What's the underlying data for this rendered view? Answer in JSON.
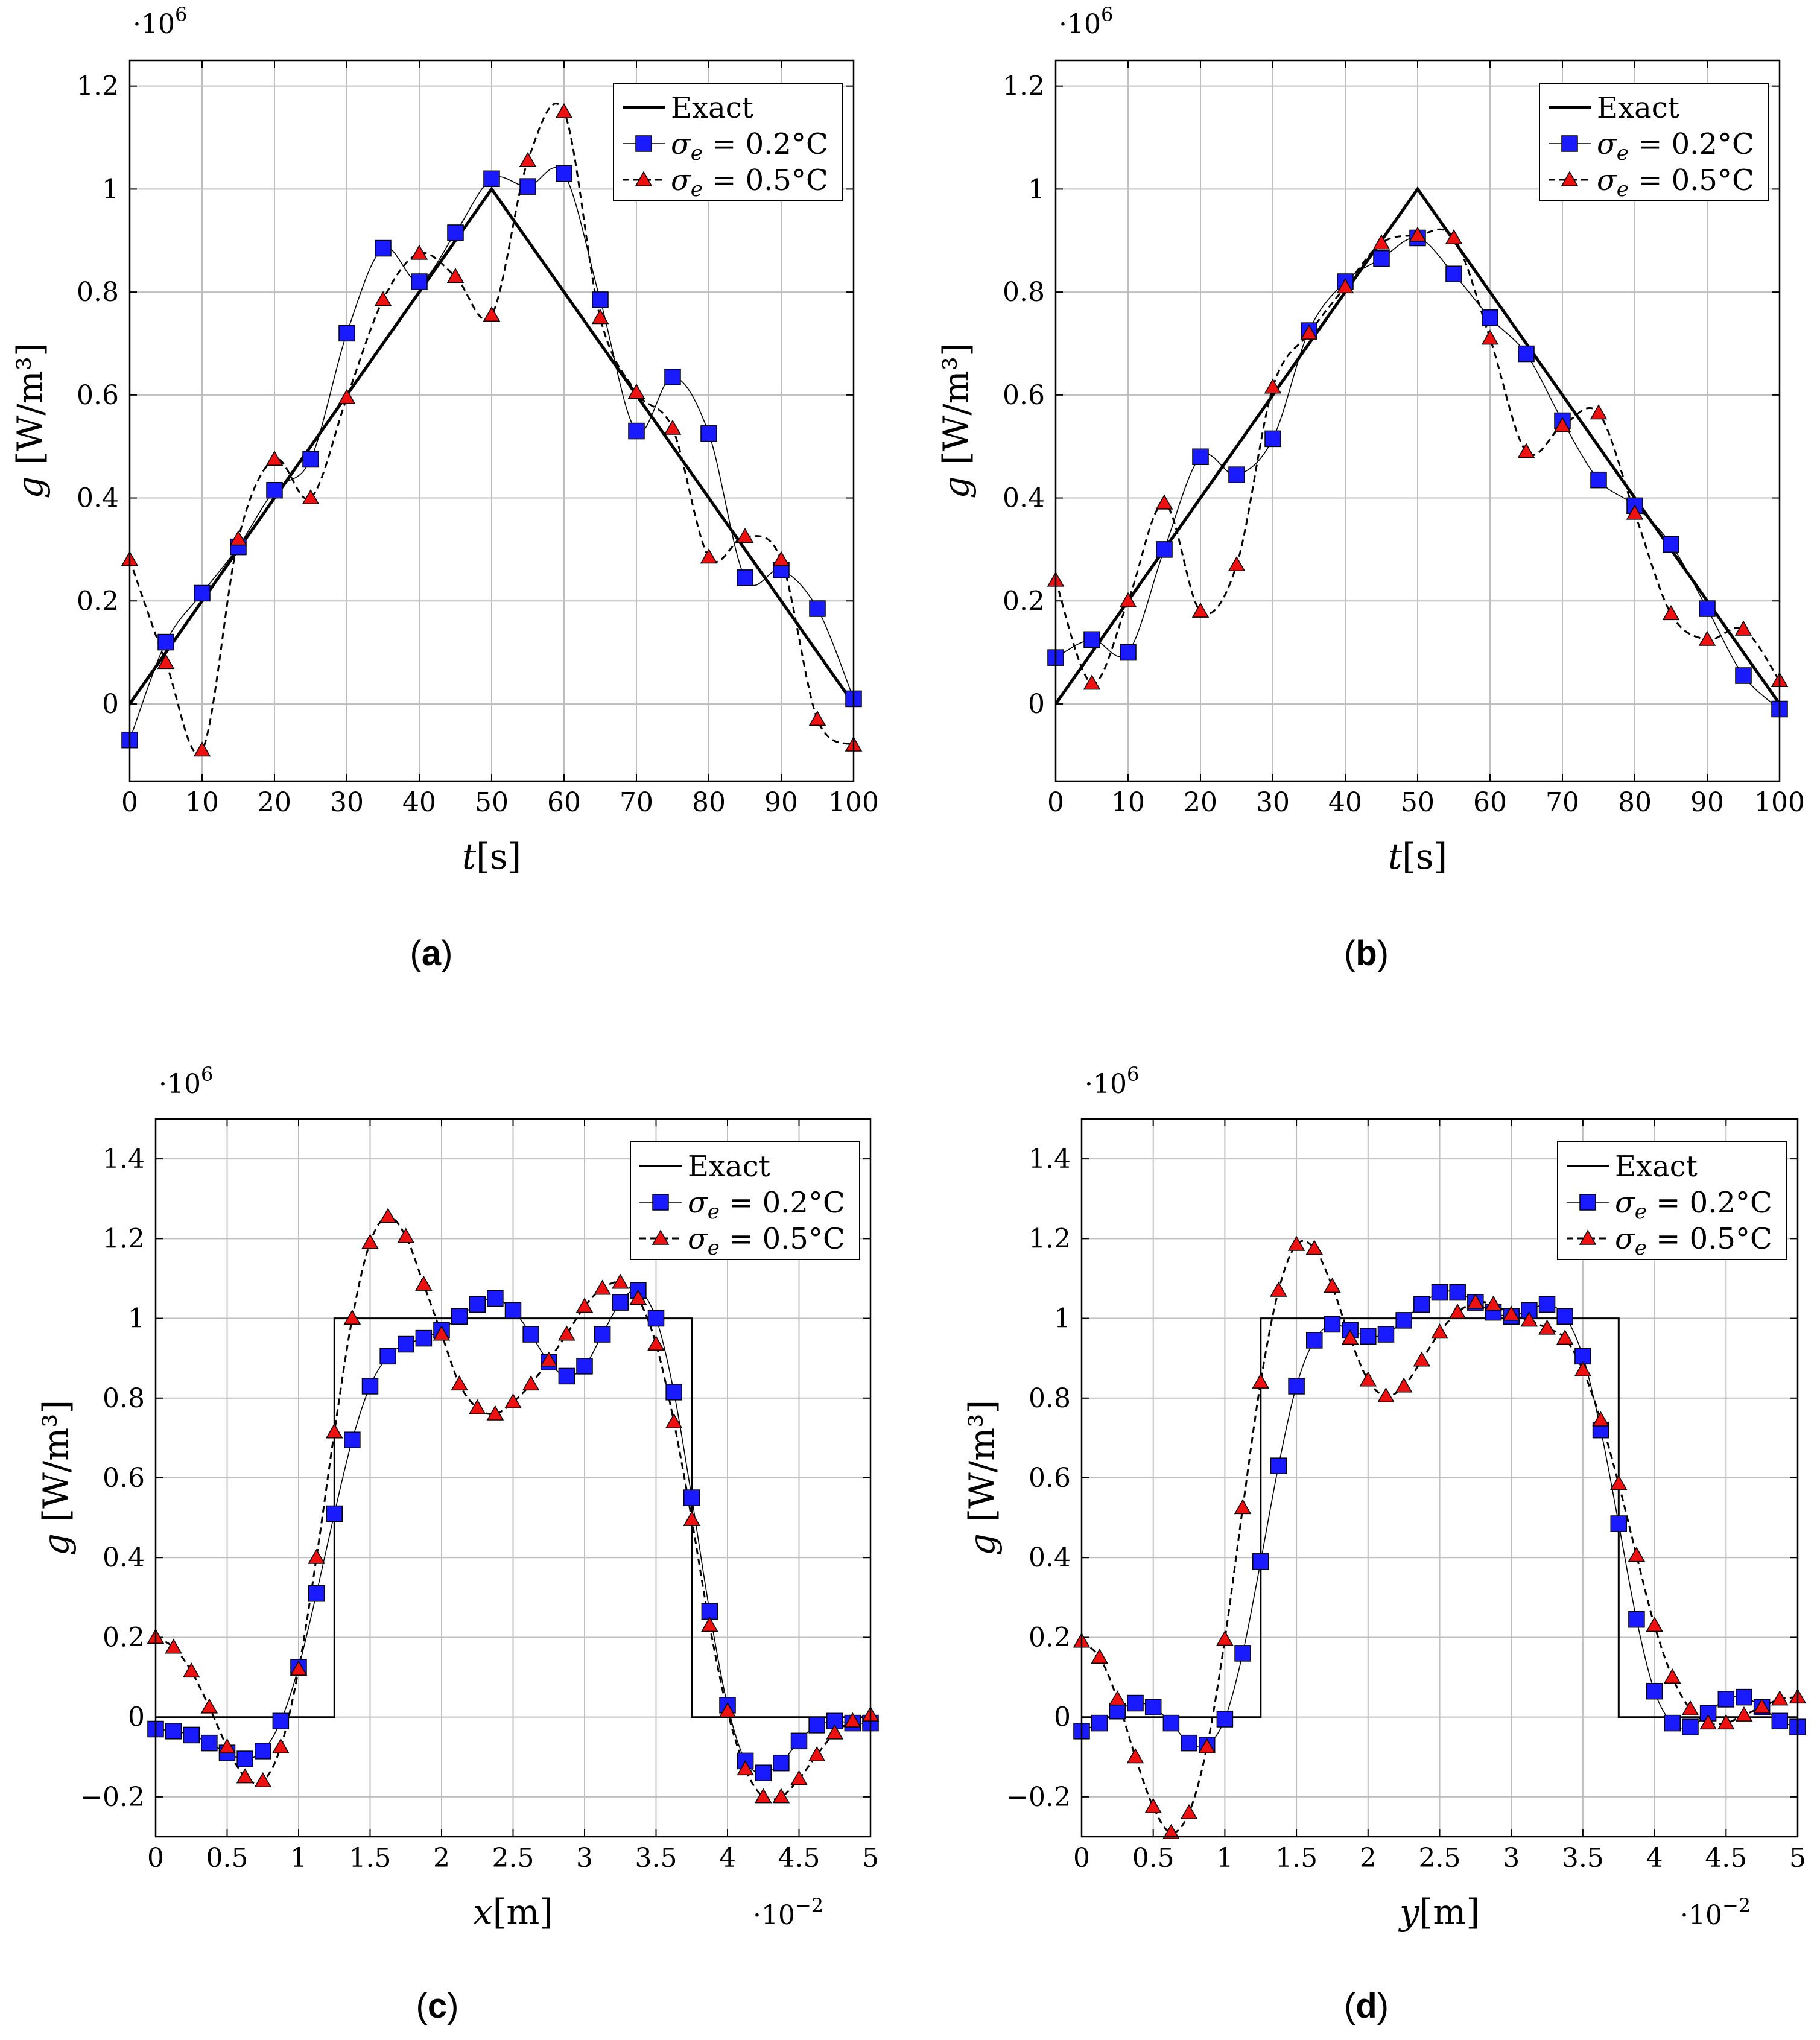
{
  "colors": {
    "exact": "#000000",
    "sigma02_fill": "#1a1aff",
    "sigma05_fill": "#ee1111",
    "grid": "#bfbfbf"
  },
  "chart_data": [
    {
      "id": "a",
      "type": "line",
      "caption_letter": "a",
      "xlabel_var": "t",
      "xlabel_unit": "[s]",
      "ylabel_var": "g",
      "ylabel_unit": "[W/m³]",
      "y_multiplier_base": "·10",
      "y_multiplier_exp": "6",
      "x_multiplier_base": "",
      "x_multiplier_exp": "",
      "xlim": [
        0,
        100
      ],
      "ylim": [
        -0.15,
        1.25
      ],
      "xticks": [
        0,
        10,
        20,
        30,
        40,
        50,
        60,
        70,
        80,
        90,
        100
      ],
      "xtick_labels": [
        "0",
        "10",
        "20",
        "30",
        "40",
        "50",
        "60",
        "70",
        "80",
        "90",
        "100"
      ],
      "yticks": [
        0,
        0.2,
        0.4,
        0.6,
        0.8,
        1,
        1.2
      ],
      "ytick_labels": [
        "0",
        "0.2",
        "0.4",
        "0.6",
        "0.8",
        "1",
        "1.2"
      ],
      "legend": {
        "exact": "Exact",
        "s1_prefix": "σ",
        "s1_sub": "e",
        "s1_value": " = 0.2°C",
        "s2_prefix": "σ",
        "s2_sub": "e",
        "s2_value": " = 0.5°C"
      },
      "series": [
        {
          "name": "Exact",
          "x": [
            0,
            50,
            100
          ],
          "values": [
            0,
            1,
            0
          ],
          "step": false
        },
        {
          "name": "σe = 0.2°C",
          "x": [
            0,
            5,
            10,
            15,
            20,
            25,
            30,
            35,
            40,
            45,
            50,
            55,
            60,
            65,
            70,
            75,
            80,
            85,
            90,
            95,
            100
          ],
          "values": [
            -0.07,
            0.12,
            0.215,
            0.305,
            0.415,
            0.475,
            0.72,
            0.885,
            0.82,
            0.915,
            1.02,
            1.005,
            1.03,
            0.785,
            0.53,
            0.635,
            0.525,
            0.245,
            0.26,
            0.185,
            0.01
          ]
        },
        {
          "name": "σe = 0.5°C",
          "x": [
            0,
            5,
            10,
            15,
            20,
            25,
            30,
            35,
            40,
            45,
            50,
            55,
            60,
            65,
            70,
            75,
            80,
            85,
            90,
            95,
            100
          ],
          "values": [
            0.28,
            0.08,
            -0.09,
            0.32,
            0.475,
            0.4,
            0.595,
            0.785,
            0.875,
            0.83,
            0.755,
            1.055,
            1.15,
            0.75,
            0.605,
            0.535,
            0.285,
            0.325,
            0.28,
            -0.03,
            -0.08
          ]
        }
      ]
    },
    {
      "id": "b",
      "type": "line",
      "caption_letter": "b",
      "xlabel_var": "t",
      "xlabel_unit": "[s]",
      "ylabel_var": "g",
      "ylabel_unit": "[W/m³]",
      "y_multiplier_base": "·10",
      "y_multiplier_exp": "6",
      "x_multiplier_base": "",
      "x_multiplier_exp": "",
      "xlim": [
        0,
        100
      ],
      "ylim": [
        -0.15,
        1.25
      ],
      "xticks": [
        0,
        10,
        20,
        30,
        40,
        50,
        60,
        70,
        80,
        90,
        100
      ],
      "xtick_labels": [
        "0",
        "10",
        "20",
        "30",
        "40",
        "50",
        "60",
        "70",
        "80",
        "90",
        "100"
      ],
      "yticks": [
        0,
        0.2,
        0.4,
        0.6,
        0.8,
        1,
        1.2
      ],
      "ytick_labels": [
        "0",
        "0.2",
        "0.4",
        "0.6",
        "0.8",
        "1",
        "1.2"
      ],
      "legend": {
        "exact": "Exact",
        "s1_prefix": "σ",
        "s1_sub": "e",
        "s1_value": " = 0.2°C",
        "s2_prefix": "σ",
        "s2_sub": "e",
        "s2_value": " = 0.5°C"
      },
      "series": [
        {
          "name": "Exact",
          "x": [
            0,
            50,
            100
          ],
          "values": [
            0,
            1,
            0
          ],
          "step": false
        },
        {
          "name": "σe = 0.2°C",
          "x": [
            0,
            5,
            10,
            15,
            20,
            25,
            30,
            35,
            40,
            45,
            50,
            55,
            60,
            65,
            70,
            75,
            80,
            85,
            90,
            95,
            100
          ],
          "values": [
            0.09,
            0.125,
            0.1,
            0.3,
            0.48,
            0.445,
            0.515,
            0.725,
            0.82,
            0.865,
            0.905,
            0.835,
            0.75,
            0.68,
            0.55,
            0.435,
            0.385,
            0.31,
            0.185,
            0.055,
            -0.01
          ]
        },
        {
          "name": "σe = 0.5°C",
          "x": [
            0,
            5,
            10,
            15,
            20,
            25,
            30,
            35,
            40,
            45,
            50,
            55,
            60,
            65,
            70,
            75,
            80,
            85,
            90,
            95,
            100
          ],
          "values": [
            0.24,
            0.04,
            0.2,
            0.39,
            0.18,
            0.27,
            0.615,
            0.72,
            0.81,
            0.895,
            0.91,
            0.905,
            0.71,
            0.49,
            0.54,
            0.565,
            0.37,
            0.175,
            0.125,
            0.145,
            0.045
          ]
        }
      ]
    },
    {
      "id": "c",
      "type": "line",
      "caption_letter": "c",
      "xlabel_var": "x",
      "xlabel_unit": "[m]",
      "ylabel_var": "g",
      "ylabel_unit": "[W/m³]",
      "y_multiplier_base": "·10",
      "y_multiplier_exp": "6",
      "x_multiplier_base": "·10",
      "x_multiplier_exp": "−2",
      "xlim": [
        0,
        5
      ],
      "ylim": [
        -0.3,
        1.5
      ],
      "xticks": [
        0,
        0.5,
        1,
        1.5,
        2,
        2.5,
        3,
        3.5,
        4,
        4.5,
        5
      ],
      "xtick_labels": [
        "0",
        "0.5",
        "1",
        "1.5",
        "2",
        "2.5",
        "3",
        "3.5",
        "4",
        "4.5",
        "5"
      ],
      "yticks": [
        -0.2,
        0,
        0.2,
        0.4,
        0.6,
        0.8,
        1,
        1.2,
        1.4
      ],
      "ytick_labels": [
        "−0.2",
        "0",
        "0.2",
        "0.4",
        "0.6",
        "0.8",
        "1",
        "1.2",
        "1.4"
      ],
      "legend": {
        "exact": "Exact",
        "s1_prefix": "σ",
        "s1_sub": "e",
        "s1_value": " = 0.2°C",
        "s2_prefix": "σ",
        "s2_sub": "e",
        "s2_value": " = 0.5°C"
      },
      "series": [
        {
          "name": "Exact",
          "x": [
            0,
            1.25,
            1.25,
            3.75,
            3.75,
            5
          ],
          "values": [
            0,
            0,
            1,
            1,
            0,
            0
          ],
          "step": true
        },
        {
          "name": "σe = 0.2°C",
          "x": [
            0,
            0.125,
            0.25,
            0.375,
            0.5,
            0.625,
            0.75,
            0.875,
            1,
            1.125,
            1.25,
            1.375,
            1.5,
            1.625,
            1.75,
            1.875,
            2,
            2.125,
            2.25,
            2.375,
            2.5,
            2.625,
            2.75,
            2.875,
            3,
            3.125,
            3.25,
            3.375,
            3.5,
            3.625,
            3.75,
            3.875,
            4,
            4.125,
            4.25,
            4.375,
            4.5,
            4.625,
            4.75,
            4.875,
            5
          ],
          "values": [
            -0.03,
            -0.035,
            -0.045,
            -0.065,
            -0.09,
            -0.105,
            -0.085,
            -0.01,
            0.125,
            0.31,
            0.51,
            0.695,
            0.83,
            0.905,
            0.935,
            0.95,
            0.97,
            1.005,
            1.035,
            1.05,
            1.02,
            0.96,
            0.89,
            0.855,
            0.88,
            0.96,
            1.04,
            1.07,
            1.0,
            0.815,
            0.55,
            0.265,
            0.03,
            -0.11,
            -0.14,
            -0.115,
            -0.06,
            -0.02,
            -0.01,
            -0.015,
            -0.015
          ]
        },
        {
          "name": "σe = 0.5°C",
          "x": [
            0,
            0.125,
            0.25,
            0.375,
            0.5,
            0.625,
            0.75,
            0.875,
            1,
            1.125,
            1.25,
            1.375,
            1.5,
            1.625,
            1.75,
            1.875,
            2,
            2.125,
            2.25,
            2.375,
            2.5,
            2.625,
            2.75,
            2.875,
            3,
            3.125,
            3.25,
            3.375,
            3.5,
            3.625,
            3.75,
            3.875,
            4,
            4.125,
            4.25,
            4.375,
            4.5,
            4.625,
            4.75,
            4.875,
            5
          ],
          "values": [
            0.2,
            0.175,
            0.115,
            0.025,
            -0.075,
            -0.15,
            -0.16,
            -0.075,
            0.12,
            0.4,
            0.715,
            1.0,
            1.19,
            1.255,
            1.205,
            1.085,
            0.96,
            0.835,
            0.775,
            0.76,
            0.79,
            0.835,
            0.895,
            0.96,
            1.03,
            1.075,
            1.09,
            1.05,
            0.935,
            0.74,
            0.495,
            0.23,
            0.015,
            -0.13,
            -0.2,
            -0.2,
            -0.155,
            -0.095,
            -0.04,
            -0.01,
            0.005
          ]
        }
      ]
    },
    {
      "id": "d",
      "type": "line",
      "caption_letter": "d",
      "xlabel_var": "y",
      "xlabel_unit": "[m]",
      "ylabel_var": "g",
      "ylabel_unit": "[W/m³]",
      "y_multiplier_base": "·10",
      "y_multiplier_exp": "6",
      "x_multiplier_base": "·10",
      "x_multiplier_exp": "−2",
      "xlim": [
        0,
        5
      ],
      "ylim": [
        -0.3,
        1.5
      ],
      "xticks": [
        0,
        0.5,
        1,
        1.5,
        2,
        2.5,
        3,
        3.5,
        4,
        4.5,
        5
      ],
      "xtick_labels": [
        "0",
        "0.5",
        "1",
        "1.5",
        "2",
        "2.5",
        "3",
        "3.5",
        "4",
        "4.5",
        "5"
      ],
      "yticks": [
        -0.2,
        0,
        0.2,
        0.4,
        0.6,
        0.8,
        1,
        1.2,
        1.4
      ],
      "ytick_labels": [
        "−0.2",
        "0",
        "0.2",
        "0.4",
        "0.6",
        "0.8",
        "1",
        "1.2",
        "1.4"
      ],
      "legend": {
        "exact": "Exact",
        "s1_prefix": "σ",
        "s1_sub": "e",
        "s1_value": " = 0.2°C",
        "s2_prefix": "σ",
        "s2_sub": "e",
        "s2_value": " = 0.5°C"
      },
      "series": [
        {
          "name": "Exact",
          "x": [
            0,
            1.25,
            1.25,
            3.75,
            3.75,
            5
          ],
          "values": [
            0,
            0,
            1,
            1,
            0,
            0
          ],
          "step": true
        },
        {
          "name": "σe = 0.2°C",
          "x": [
            0,
            0.125,
            0.25,
            0.375,
            0.5,
            0.625,
            0.75,
            0.875,
            1,
            1.125,
            1.25,
            1.375,
            1.5,
            1.625,
            1.75,
            1.875,
            2,
            2.125,
            2.25,
            2.375,
            2.5,
            2.625,
            2.75,
            2.875,
            3,
            3.125,
            3.25,
            3.375,
            3.5,
            3.625,
            3.75,
            3.875,
            4,
            4.125,
            4.25,
            4.375,
            4.5,
            4.625,
            4.75,
            4.875,
            5
          ],
          "values": [
            -0.035,
            -0.015,
            0.015,
            0.035,
            0.025,
            -0.015,
            -0.065,
            -0.07,
            -0.005,
            0.16,
            0.39,
            0.63,
            0.83,
            0.945,
            0.985,
            0.97,
            0.955,
            0.96,
            0.995,
            1.035,
            1.065,
            1.065,
            1.04,
            1.015,
            1.005,
            1.02,
            1.035,
            1.005,
            0.905,
            0.72,
            0.485,
            0.245,
            0.065,
            -0.015,
            -0.025,
            0.01,
            0.045,
            0.05,
            0.025,
            -0.01,
            -0.025
          ]
        },
        {
          "name": "σe = 0.5°C",
          "x": [
            0,
            0.125,
            0.25,
            0.375,
            0.5,
            0.625,
            0.75,
            0.875,
            1,
            1.125,
            1.25,
            1.375,
            1.5,
            1.625,
            1.75,
            1.875,
            2,
            2.125,
            2.25,
            2.375,
            2.5,
            2.625,
            2.75,
            2.875,
            3,
            3.125,
            3.25,
            3.375,
            3.5,
            3.625,
            3.75,
            3.875,
            4,
            4.125,
            4.25,
            4.375,
            4.5,
            4.625,
            4.75,
            4.875,
            5
          ],
          "values": [
            0.19,
            0.15,
            0.045,
            -0.1,
            -0.225,
            -0.29,
            -0.24,
            -0.075,
            0.195,
            0.525,
            0.84,
            1.07,
            1.185,
            1.175,
            1.08,
            0.95,
            0.845,
            0.805,
            0.83,
            0.895,
            0.965,
            1.015,
            1.04,
            1.035,
            1.01,
            0.995,
            0.975,
            0.95,
            0.87,
            0.745,
            0.585,
            0.405,
            0.23,
            0.1,
            0.02,
            -0.015,
            -0.015,
            0.005,
            0.025,
            0.045,
            0.05
          ]
        }
      ]
    }
  ]
}
